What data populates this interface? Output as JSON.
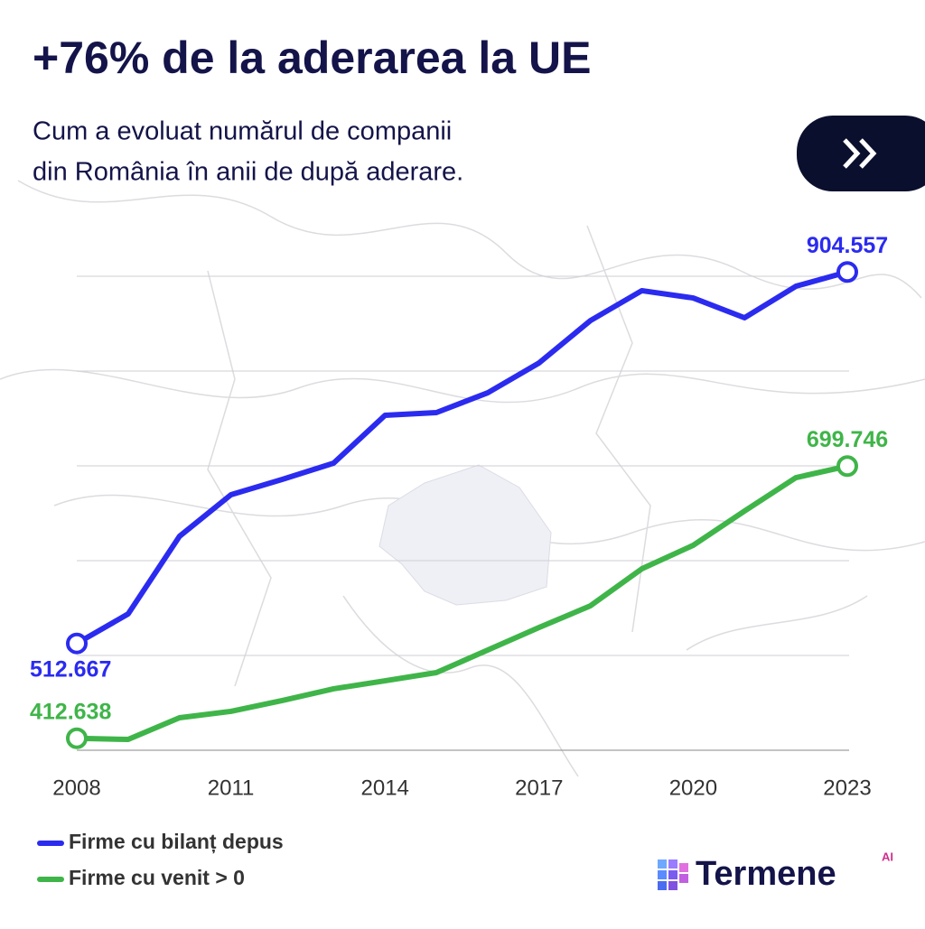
{
  "chart_data": {
    "type": "line",
    "title": "+76% de la aderarea la UE",
    "subtitle": [
      "Cum a evoluat numărul de companii",
      "din România în anii de după aderare."
    ],
    "x": [
      2008,
      2009,
      2010,
      2011,
      2012,
      2013,
      2014,
      2015,
      2016,
      2017,
      2018,
      2019,
      2020,
      2021,
      2022,
      2023
    ],
    "xlim": [
      2008,
      2023
    ],
    "xticks": [
      2008,
      2011,
      2014,
      2017,
      2020,
      2023
    ],
    "ylim": [
      400000,
      900000
    ],
    "yticks": [
      400000,
      500000,
      600000,
      700000,
      800000,
      900000
    ],
    "grid": true,
    "series": [
      {
        "name": "Firme cu bilanț depus",
        "color": "#2b2bf0",
        "values": [
          512667,
          543800,
          625700,
          669500,
          685700,
          702900,
          753300,
          756200,
          777100,
          808600,
          853300,
          884800,
          877100,
          856200,
          889500,
          904557
        ],
        "value_labels": [
          "512.667",
          null,
          null,
          null,
          null,
          null,
          null,
          null,
          null,
          null,
          null,
          null,
          null,
          null,
          null,
          "904.557"
        ]
      },
      {
        "name": "Firme cu venit > 0",
        "color": "#3fb549",
        "values": [
          412638,
          411400,
          434300,
          441000,
          452400,
          464800,
          473300,
          481900,
          505700,
          529500,
          552400,
          591400,
          616200,
          652400,
          687600,
          699746
        ],
        "value_labels": [
          "412.638",
          null,
          null,
          null,
          null,
          null,
          null,
          null,
          null,
          null,
          null,
          null,
          null,
          null,
          null,
          "699.746"
        ]
      }
    ]
  },
  "logo": {
    "name": "Termene",
    "badge": "AI"
  }
}
